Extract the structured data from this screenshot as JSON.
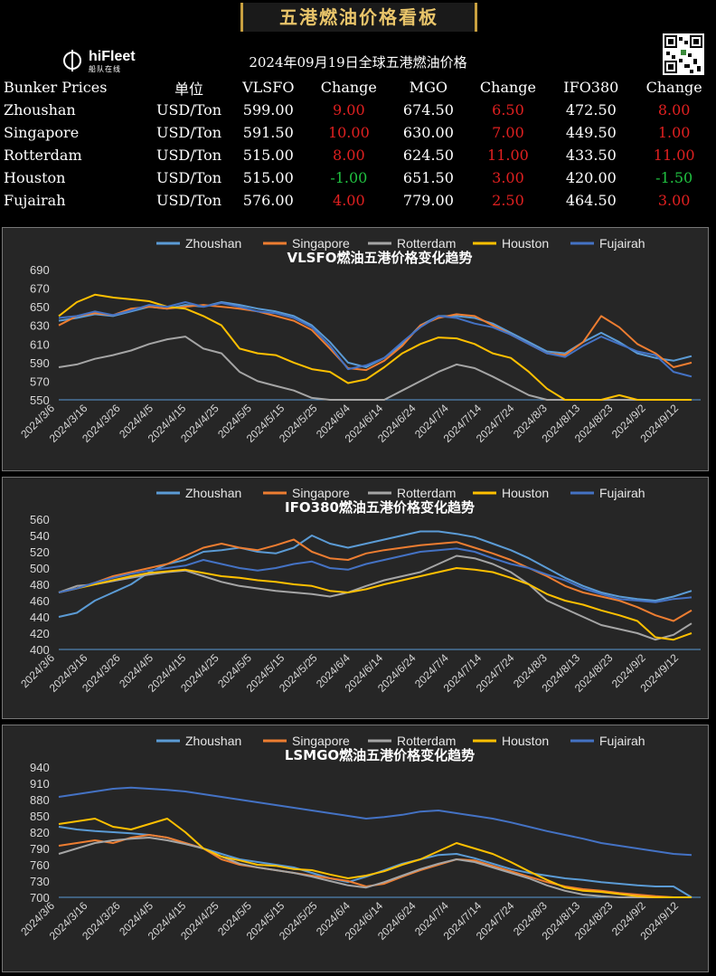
{
  "banner_title": "五港燃油价格看板",
  "logo": {
    "name": "hiFleet",
    "subtitle": "船队在线"
  },
  "date_title": "2024年09月19日全球五港燃油价格",
  "table": {
    "headers": [
      "Bunker Prices",
      "单位",
      "VLSFO",
      "Change",
      "MGO",
      "Change",
      "IFO380",
      "Change"
    ],
    "rows": [
      {
        "port": "Zhoushan",
        "unit": "USD/Ton",
        "vlsfo": "599.00",
        "vlsfo_chg": "9.00",
        "mgo": "674.50",
        "mgo_chg": "6.50",
        "ifo": "472.50",
        "ifo_chg": "8.00"
      },
      {
        "port": "Singapore",
        "unit": "USD/Ton",
        "vlsfo": "591.50",
        "vlsfo_chg": "10.00",
        "mgo": "630.00",
        "mgo_chg": "7.00",
        "ifo": "449.50",
        "ifo_chg": "1.00"
      },
      {
        "port": "Rotterdam",
        "unit": "USD/Ton",
        "vlsfo": "515.00",
        "vlsfo_chg": "8.00",
        "mgo": "624.50",
        "mgo_chg": "11.00",
        "ifo": "433.50",
        "ifo_chg": "11.00"
      },
      {
        "port": "Houston",
        "unit": "USD/Ton",
        "vlsfo": "515.00",
        "vlsfo_chg": "-1.00",
        "mgo": "651.50",
        "mgo_chg": "3.00",
        "ifo": "420.00",
        "ifo_chg": "-1.50"
      },
      {
        "port": "Fujairah",
        "unit": "USD/Ton",
        "vlsfo": "576.00",
        "vlsfo_chg": "4.00",
        "mgo": "779.00",
        "mgo_chg": "2.50",
        "ifo": "464.50",
        "ifo_chg": "3.00"
      }
    ]
  },
  "colors": {
    "up": "#e02020",
    "down": "#20c040",
    "gold": "#e8c46a"
  },
  "chart_data": [
    {
      "type": "line",
      "title": "VLSFO燃油五港价格变化趋势",
      "x_ticks": [
        "2024/3/6",
        "2024/3/16",
        "2024/3/26",
        "2024/4/5",
        "2024/4/15",
        "2024/4/25",
        "2024/5/5",
        "2024/5/15",
        "2024/5/25",
        "2024/6/4",
        "2024/6/14",
        "2024/6/24",
        "2024/7/4",
        "2024/7/14",
        "2024/7/24",
        "2024/8/3",
        "2024/8/13",
        "2024/8/23",
        "2024/9/2",
        "2024/9/12"
      ],
      "y_ticks": [
        550,
        570,
        590,
        610,
        630,
        650,
        670,
        690
      ],
      "ylim": [
        550,
        690
      ],
      "legend_position": "top",
      "series": [
        {
          "name": "Zhoushan",
          "color": "#5b9bd5",
          "values": [
            635,
            638,
            642,
            640,
            645,
            650,
            648,
            652,
            650,
            655,
            652,
            648,
            645,
            640,
            630,
            612,
            590,
            585,
            595,
            610,
            630,
            640,
            640,
            638,
            632,
            622,
            612,
            602,
            600,
            612,
            622,
            612,
            600,
            595,
            592,
            597
          ]
        },
        {
          "name": "Singapore",
          "color": "#ed7d31",
          "values": [
            630,
            640,
            643,
            641,
            648,
            650,
            648,
            650,
            652,
            650,
            648,
            645,
            640,
            635,
            625,
            605,
            584,
            582,
            592,
            608,
            630,
            638,
            642,
            640,
            630,
            620,
            610,
            600,
            598,
            612,
            640,
            628,
            610,
            600,
            585,
            590
          ]
        },
        {
          "name": "Rotterdam",
          "color": "#a5a5a5",
          "values": [
            585,
            588,
            594,
            598,
            603,
            610,
            615,
            618,
            605,
            600,
            580,
            570,
            565,
            560,
            552,
            545,
            540,
            542,
            550,
            560,
            570,
            580,
            588,
            584,
            575,
            565,
            555,
            545,
            540,
            540,
            540,
            540,
            540,
            540,
            540,
            540
          ]
        },
        {
          "name": "Houston",
          "color": "#ffc000",
          "values": [
            640,
            655,
            663,
            660,
            658,
            656,
            650,
            648,
            640,
            630,
            605,
            600,
            598,
            590,
            583,
            580,
            568,
            572,
            585,
            600,
            610,
            617,
            616,
            610,
            600,
            595,
            580,
            562,
            550,
            548,
            545,
            555,
            548,
            545,
            545,
            545
          ]
        },
        {
          "name": "Fujairah",
          "color": "#4472c4",
          "values": [
            638,
            640,
            645,
            641,
            646,
            652,
            650,
            655,
            650,
            654,
            650,
            645,
            643,
            638,
            628,
            608,
            583,
            587,
            595,
            612,
            628,
            640,
            638,
            632,
            628,
            620,
            610,
            600,
            596,
            608,
            618,
            610,
            602,
            598,
            580,
            575
          ]
        }
      ]
    },
    {
      "type": "line",
      "title": "IFO380燃油五港价格变化趋势",
      "x_ticks": [
        "2024/3/6",
        "2024/3/16",
        "2024/3/26",
        "2024/4/5",
        "2024/4/15",
        "2024/4/25",
        "2024/5/5",
        "2024/5/15",
        "2024/5/25",
        "2024/6/4",
        "2024/6/14",
        "2024/6/24",
        "2024/7/4",
        "2024/7/14",
        "2024/7/24",
        "2024/8/3",
        "2024/8/13",
        "2024/8/23",
        "2024/9/2",
        "2024/9/12"
      ],
      "y_ticks": [
        400,
        420,
        440,
        460,
        480,
        500,
        520,
        540,
        560
      ],
      "ylim": [
        400,
        560
      ],
      "legend_position": "top",
      "series": [
        {
          "name": "Zhoushan",
          "color": "#5b9bd5",
          "values": [
            440,
            445,
            460,
            470,
            480,
            495,
            505,
            510,
            520,
            522,
            525,
            520,
            518,
            525,
            540,
            530,
            525,
            530,
            535,
            540,
            545,
            545,
            542,
            538,
            530,
            522,
            512,
            500,
            488,
            478,
            470,
            465,
            462,
            460,
            465,
            472
          ]
        },
        {
          "name": "Singapore",
          "color": "#ed7d31",
          "values": [
            470,
            475,
            482,
            490,
            495,
            500,
            505,
            515,
            525,
            530,
            525,
            522,
            528,
            535,
            520,
            512,
            510,
            518,
            522,
            525,
            528,
            530,
            532,
            525,
            518,
            510,
            500,
            490,
            478,
            470,
            465,
            460,
            452,
            442,
            435,
            448
          ]
        },
        {
          "name": "Rotterdam",
          "color": "#a5a5a5",
          "values": [
            470,
            478,
            480,
            484,
            488,
            492,
            495,
            497,
            490,
            483,
            478,
            475,
            472,
            470,
            468,
            465,
            470,
            478,
            485,
            490,
            495,
            505,
            515,
            512,
            505,
            495,
            480,
            460,
            450,
            440,
            430,
            425,
            420,
            412,
            418,
            432
          ]
        },
        {
          "name": "Houston",
          "color": "#ffc000",
          "values": [
            470,
            475,
            480,
            485,
            490,
            494,
            496,
            498,
            494,
            490,
            488,
            485,
            483,
            480,
            478,
            472,
            470,
            474,
            480,
            485,
            490,
            495,
            500,
            498,
            495,
            488,
            480,
            468,
            460,
            455,
            448,
            442,
            435,
            415,
            412,
            420
          ]
        },
        {
          "name": "Fujairah",
          "color": "#4472c4",
          "values": [
            470,
            475,
            482,
            488,
            493,
            497,
            500,
            503,
            510,
            505,
            500,
            497,
            500,
            505,
            508,
            500,
            498,
            505,
            510,
            515,
            520,
            522,
            524,
            520,
            512,
            505,
            500,
            492,
            485,
            475,
            468,
            462,
            460,
            458,
            462,
            464
          ]
        }
      ]
    },
    {
      "type": "line",
      "title": "LSMGO燃油五港价格变化趋势",
      "x_ticks": [
        "2024/3/6",
        "2024/3/16",
        "2024/3/26",
        "2024/4/5",
        "2024/4/15",
        "2024/4/25",
        "2024/5/5",
        "2024/5/15",
        "2024/5/25",
        "2024/6/4",
        "2024/6/14",
        "2024/6/24",
        "2024/7/4",
        "2024/7/14",
        "2024/7/24",
        "2024/8/3",
        "2024/8/13",
        "2024/8/23",
        "2024/9/2",
        "2024/9/12"
      ],
      "y_ticks": [
        700,
        730,
        760,
        790,
        820,
        850,
        880,
        910,
        940
      ],
      "ylim": [
        700,
        940
      ],
      "legend_position": "top",
      "series": [
        {
          "name": "Zhoushan",
          "color": "#5b9bd5",
          "values": [
            830,
            825,
            822,
            820,
            818,
            815,
            810,
            800,
            790,
            780,
            770,
            765,
            760,
            755,
            745,
            735,
            728,
            738,
            750,
            762,
            770,
            778,
            780,
            772,
            762,
            752,
            745,
            740,
            735,
            732,
            728,
            725,
            722,
            720,
            720,
            695
          ]
        },
        {
          "name": "Singapore",
          "color": "#ed7d31",
          "values": [
            795,
            800,
            805,
            800,
            810,
            815,
            810,
            800,
            790,
            770,
            760,
            755,
            750,
            745,
            740,
            735,
            730,
            720,
            725,
            738,
            750,
            760,
            770,
            768,
            758,
            748,
            738,
            728,
            720,
            715,
            712,
            708,
            705,
            702,
            700,
            700
          ]
        },
        {
          "name": "Rotterdam",
          "color": "#a5a5a5",
          "values": [
            780,
            790,
            800,
            805,
            808,
            810,
            805,
            798,
            790,
            775,
            762,
            755,
            750,
            745,
            738,
            730,
            722,
            718,
            728,
            740,
            752,
            762,
            770,
            765,
            755,
            745,
            735,
            722,
            712,
            705,
            702,
            700,
            700,
            700,
            700,
            700
          ]
        },
        {
          "name": "Houston",
          "color": "#ffc000",
          "values": [
            835,
            840,
            845,
            830,
            825,
            835,
            845,
            820,
            790,
            775,
            768,
            760,
            758,
            752,
            750,
            742,
            735,
            740,
            748,
            760,
            770,
            785,
            800,
            790,
            780,
            765,
            748,
            732,
            718,
            712,
            710,
            706,
            702,
            700,
            700,
            700
          ]
        },
        {
          "name": "Fujairah",
          "color": "#4472c4",
          "values": [
            885,
            890,
            895,
            900,
            902,
            900,
            898,
            895,
            890,
            885,
            880,
            875,
            870,
            865,
            860,
            855,
            850,
            845,
            848,
            852,
            858,
            860,
            855,
            850,
            845,
            838,
            830,
            822,
            815,
            808,
            800,
            795,
            790,
            785,
            780,
            778
          ]
        }
      ]
    }
  ]
}
